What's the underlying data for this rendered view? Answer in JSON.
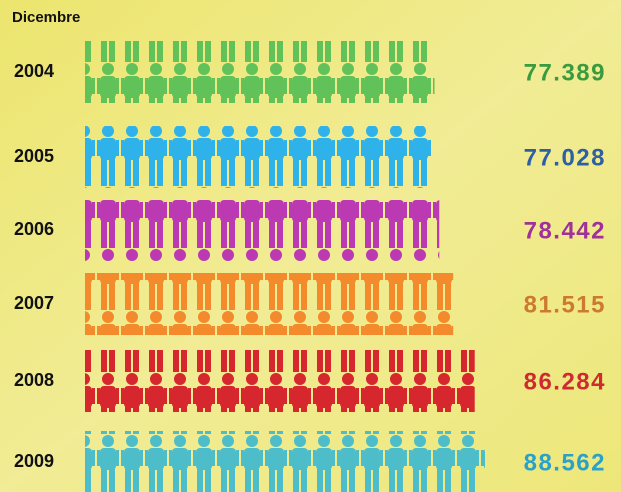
{
  "chart_data": {
    "type": "bar",
    "title": "Dicembre",
    "categories": [
      "2004",
      "2005",
      "2006",
      "2007",
      "2008",
      "2009"
    ],
    "values": [
      77389,
      77028,
      78442,
      81515,
      86284,
      88562
    ],
    "value_labels": [
      "77.389",
      "77.028",
      "78.442",
      "81.515",
      "86.284",
      "88.562"
    ],
    "colors": [
      "#62c25a",
      "#2fb2ea",
      "#bb39b2",
      "#f38a2c",
      "#d6262e",
      "#4dbdca"
    ],
    "label_colors": [
      "#3a9a3e",
      "#2e5fa3",
      "#a0309a",
      "#cc7a2e",
      "#cf2a30",
      "#2aa2c8"
    ]
  }
}
